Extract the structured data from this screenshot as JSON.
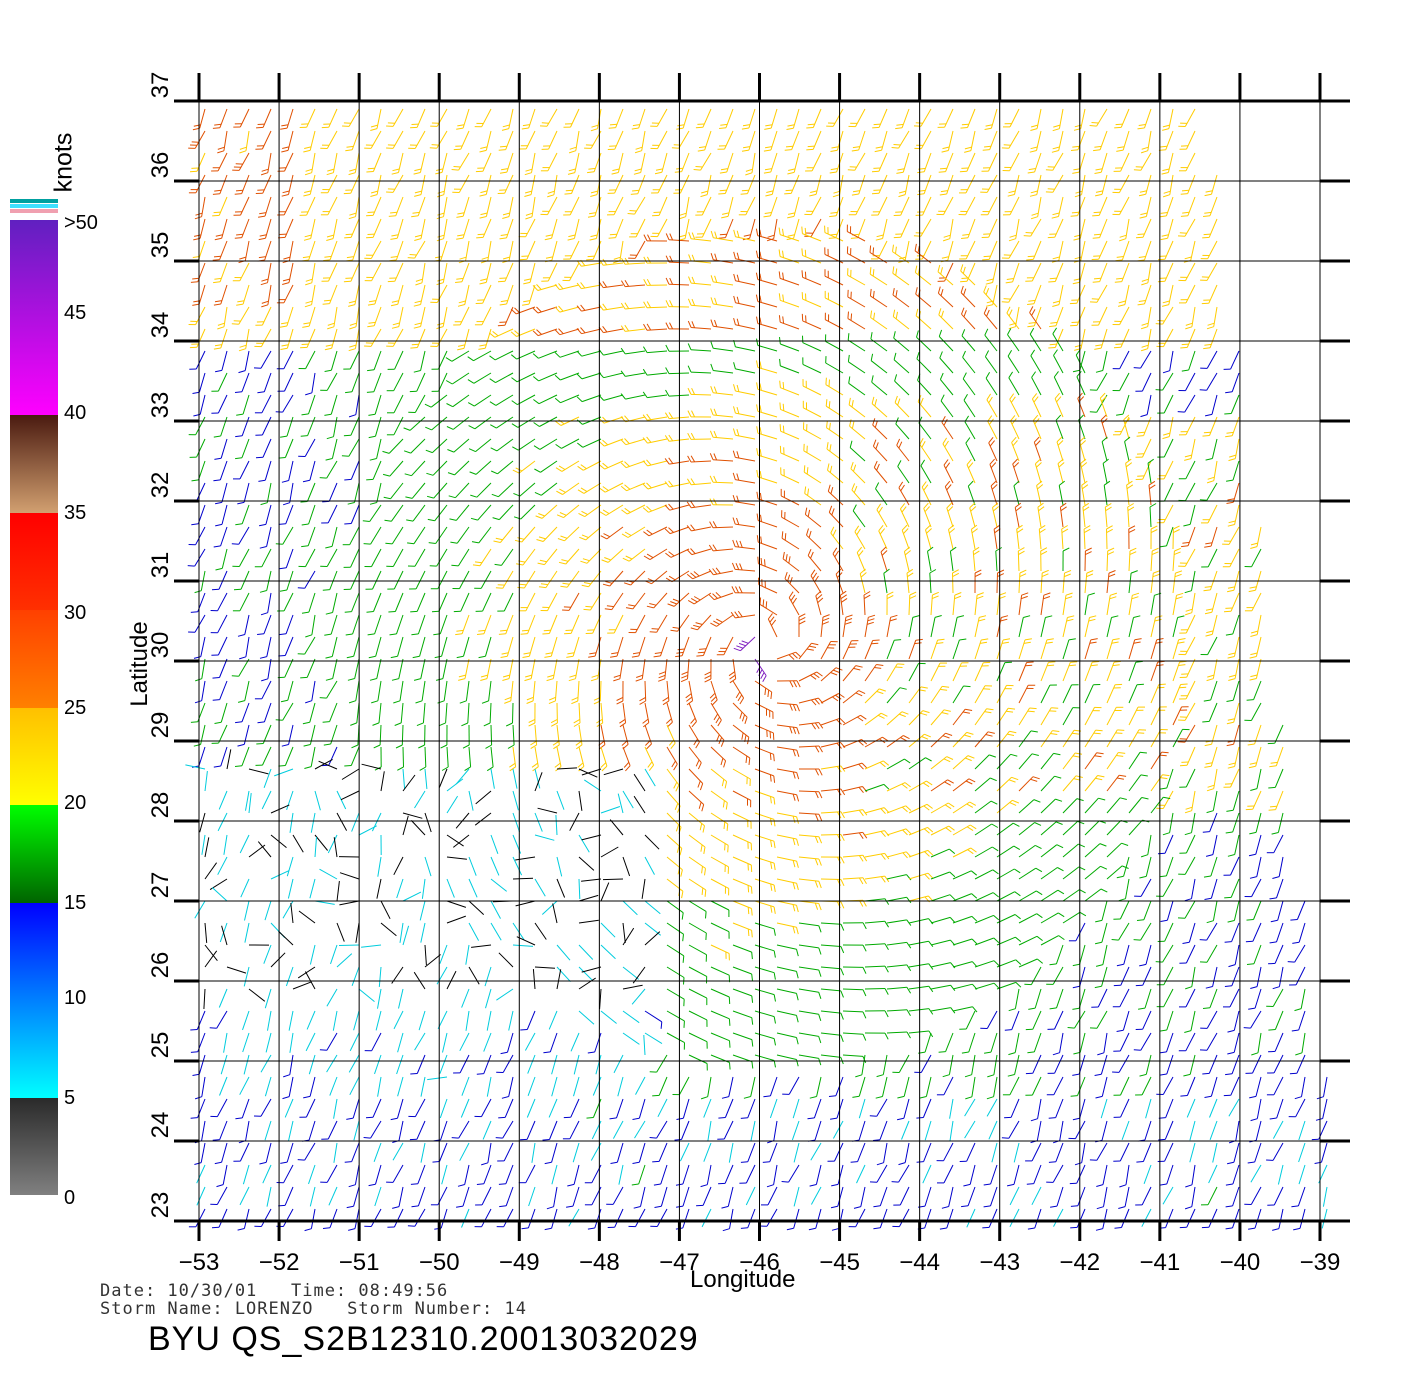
{
  "map": {
    "lon_range": [
      -53,
      -39
    ],
    "lat_range": [
      23,
      37
    ],
    "lon_ticks": [
      -53,
      -52,
      -51,
      -50,
      -49,
      -48,
      -47,
      -46,
      -45,
      -44,
      -43,
      -42,
      -41,
      -40,
      -39
    ],
    "lat_ticks": [
      23,
      24,
      25,
      26,
      27,
      28,
      29,
      30,
      31,
      32,
      33,
      34,
      35,
      36,
      37
    ],
    "xlabel": "Longitude",
    "ylabel": "Latitude",
    "grid": true,
    "storm_center": {
      "lon": -45.9,
      "lat": 30.2
    },
    "wind_barbs": "wind vector barbs colored by speed, cyclonic circulation around storm center"
  },
  "colorbar": {
    "units": "knots",
    "labels": [
      "0",
      "5",
      "10",
      "15",
      "20",
      "25",
      "30",
      "35",
      "40",
      "45",
      ">50"
    ],
    "bins": [
      {
        "from": 0,
        "to": 5,
        "colors": [
          "#808080",
          "#2a2a2a"
        ]
      },
      {
        "from": 5,
        "to": 10,
        "colors": [
          "#00ffff",
          "#0080ff"
        ]
      },
      {
        "from": 10,
        "to": 15,
        "colors": [
          "#0080ff",
          "#0000ff"
        ]
      },
      {
        "from": 15,
        "to": 20,
        "colors": [
          "#006400",
          "#00ff00"
        ]
      },
      {
        "from": 20,
        "to": 25,
        "colors": [
          "#ffff00",
          "#ffc000"
        ]
      },
      {
        "from": 25,
        "to": 30,
        "colors": [
          "#ff8000",
          "#ff4000"
        ]
      },
      {
        "from": 30,
        "to": 35,
        "colors": [
          "#ff3000",
          "#ff0000"
        ]
      },
      {
        "from": 35,
        "to": 40,
        "colors": [
          "#d2a070",
          "#4a1a10"
        ]
      },
      {
        "from": 40,
        "to": 50,
        "colors": [
          "#ff00ff",
          "#6020c0"
        ]
      }
    ]
  },
  "footer": {
    "date_line": "Date: 10/30/01   Time: 08:49:56",
    "storm_line": "Storm Name: LORENZO   Storm Number: 14",
    "file_id": "BYU QS_S2B12310.20013032029"
  },
  "colors": {
    "grid": "#000000",
    "calm": "#000000",
    "light": "#00ccdd",
    "moderate": "#0000cc",
    "fresh": "#00aa00",
    "strong": "#ffcc00",
    "gale": "#e05000",
    "storm": "#8020c0"
  }
}
